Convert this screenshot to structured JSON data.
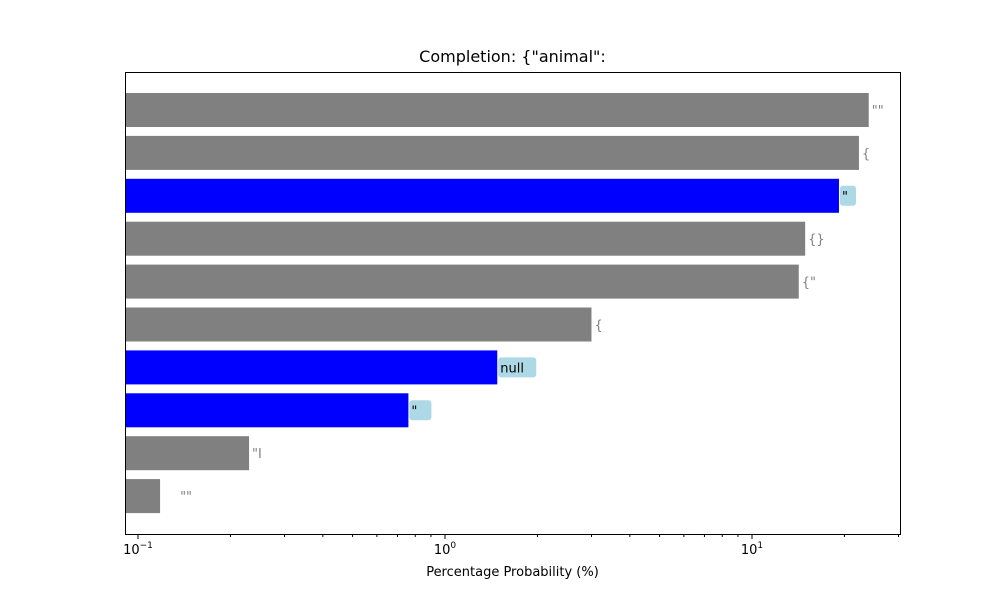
{
  "chart_data": {
    "type": "bar",
    "orientation": "horizontal",
    "title": "Completion: {\"animal\":",
    "xlabel": "Percentage Probability (%)",
    "ylabel": "",
    "x_scale": "log",
    "xlim": [
      0.09,
      30
    ],
    "x_ticks": [
      {
        "value": 0.1,
        "base": "10",
        "exp": "−1"
      },
      {
        "value": 1,
        "base": "10",
        "exp": "0"
      },
      {
        "value": 10,
        "base": "10",
        "exp": "1"
      }
    ],
    "grid": false,
    "legend": "none",
    "colors": {
      "selected_bar": "#0000ff",
      "other_bar": "#808080",
      "selected_label_bg": "#add8e6",
      "selected_label_text": "#000000",
      "other_label_text": "#808080"
    },
    "categories": [
      "\"\"",
      "{",
      "\"",
      "{}",
      "{\"",
      "{",
      "null",
      " \"",
      "\"I",
      " \"\""
    ],
    "values": [
      24.0,
      22.3,
      19.2,
      14.9,
      14.2,
      3.0,
      1.48,
      0.76,
      0.23,
      0.118
    ],
    "selected": [
      false,
      false,
      true,
      false,
      false,
      false,
      true,
      true,
      false,
      false
    ]
  }
}
